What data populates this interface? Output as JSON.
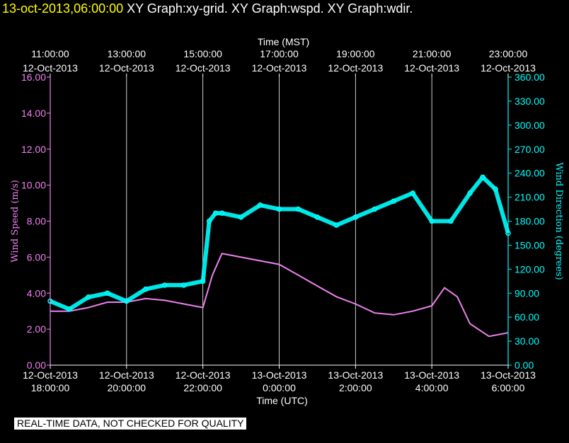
{
  "header": {
    "timestamp": "13-oct-2013,06:00:00",
    "graphs": "XY Graph:xy-grid.  XY Graph:wspd.  XY Graph:wdir."
  },
  "disclaimer": "REAL-TIME DATA, NOT CHECKED FOR QUALITY",
  "colors": {
    "wind_speed": "#ee82ee",
    "wind_direction": "#00ffff",
    "grid": "#ffffff",
    "background": "#000000",
    "header_timestamp": "#ffff00"
  },
  "chart_data": {
    "type": "line",
    "top_axis": {
      "title": "Time (MST)",
      "ticks": [
        {
          "time": "11:00:00",
          "date": "12-Oct-2013"
        },
        {
          "time": "13:00:00",
          "date": "12-Oct-2013"
        },
        {
          "time": "15:00:00",
          "date": "12-Oct-2013"
        },
        {
          "time": "17:00:00",
          "date": "12-Oct-2013"
        },
        {
          "time": "19:00:00",
          "date": "12-Oct-2013"
        },
        {
          "time": "21:00:00",
          "date": "12-Oct-2013"
        },
        {
          "time": "23:00:00",
          "date": "12-Oct-2013"
        }
      ]
    },
    "bottom_axis": {
      "title": "Time (UTC)",
      "ticks": [
        {
          "date": "12-Oct-2013",
          "time": "18:00:00"
        },
        {
          "date": "12-Oct-2013",
          "time": "20:00:00"
        },
        {
          "date": "12-Oct-2013",
          "time": "22:00:00"
        },
        {
          "date": "13-Oct-2013",
          "time": "0:00:00"
        },
        {
          "date": "13-Oct-2013",
          "time": "2:00:00"
        },
        {
          "date": "13-Oct-2013",
          "time": "4:00:00"
        },
        {
          "date": "13-Oct-2013",
          "time": "6:00:00"
        }
      ]
    },
    "x_range_utc": [
      "2013-10-12 18:00",
      "2013-10-13 06:00"
    ],
    "left_axis": {
      "title": "Wind Speed (m/s)",
      "range": [
        0,
        16
      ],
      "ticks": [
        "0.00",
        "2.00",
        "4.00",
        "6.00",
        "8.00",
        "10.00",
        "12.00",
        "14.00",
        "16.00"
      ]
    },
    "right_axis": {
      "title": "Wind Direction (degrees)",
      "range": [
        0,
        360
      ],
      "ticks": [
        "0.00",
        "30.00",
        "60.00",
        "90.00",
        "120.00",
        "150.00",
        "180.00",
        "210.00",
        "240.00",
        "270.00",
        "300.00",
        "330.00",
        "360.00"
      ]
    },
    "grid": true,
    "series": [
      {
        "name": "Wind Speed",
        "axis": "left",
        "style": "line",
        "x_utc": [
          "2013-10-12 18:00",
          "2013-10-12 18:30",
          "2013-10-12 19:00",
          "2013-10-12 19:30",
          "2013-10-12 20:00",
          "2013-10-12 20:30",
          "2013-10-12 21:00",
          "2013-10-12 21:30",
          "2013-10-12 22:00",
          "2013-10-12 22:15",
          "2013-10-12 22:30",
          "2013-10-12 23:00",
          "2013-10-12 23:30",
          "2013-10-13 00:00",
          "2013-10-13 00:30",
          "2013-10-13 01:00",
          "2013-10-13 01:30",
          "2013-10-13 02:00",
          "2013-10-13 02:30",
          "2013-10-13 03:00",
          "2013-10-13 03:30",
          "2013-10-13 04:00",
          "2013-10-13 04:20",
          "2013-10-13 04:40",
          "2013-10-13 05:00",
          "2013-10-13 05:30",
          "2013-10-13 06:00"
        ],
        "values": [
          3.0,
          3.0,
          3.2,
          3.5,
          3.5,
          3.7,
          3.6,
          3.4,
          3.2,
          5.0,
          6.2,
          6.0,
          5.8,
          5.6,
          5.0,
          4.4,
          3.8,
          3.4,
          2.9,
          2.8,
          3.0,
          3.3,
          4.3,
          3.8,
          2.3,
          1.6,
          1.8
        ]
      },
      {
        "name": "Wind Direction",
        "axis": "right",
        "style": "points",
        "x_utc": [
          "2013-10-12 18:00",
          "2013-10-12 18:30",
          "2013-10-12 19:00",
          "2013-10-12 19:30",
          "2013-10-12 20:00",
          "2013-10-12 20:30",
          "2013-10-12 21:00",
          "2013-10-12 21:30",
          "2013-10-12 22:00",
          "2013-10-12 22:10",
          "2013-10-12 22:20",
          "2013-10-12 22:30",
          "2013-10-12 23:00",
          "2013-10-12 23:30",
          "2013-10-13 00:00",
          "2013-10-13 00:30",
          "2013-10-13 01:00",
          "2013-10-13 01:30",
          "2013-10-13 02:00",
          "2013-10-13 02:30",
          "2013-10-13 03:00",
          "2013-10-13 03:30",
          "2013-10-13 04:00",
          "2013-10-13 04:30",
          "2013-10-13 05:00",
          "2013-10-13 05:20",
          "2013-10-13 05:40",
          "2013-10-13 06:00"
        ],
        "values": [
          80,
          70,
          85,
          90,
          80,
          95,
          100,
          100,
          105,
          180,
          190,
          190,
          185,
          200,
          195,
          195,
          185,
          175,
          185,
          195,
          205,
          215,
          180,
          180,
          215,
          235,
          220,
          165
        ]
      }
    ]
  }
}
